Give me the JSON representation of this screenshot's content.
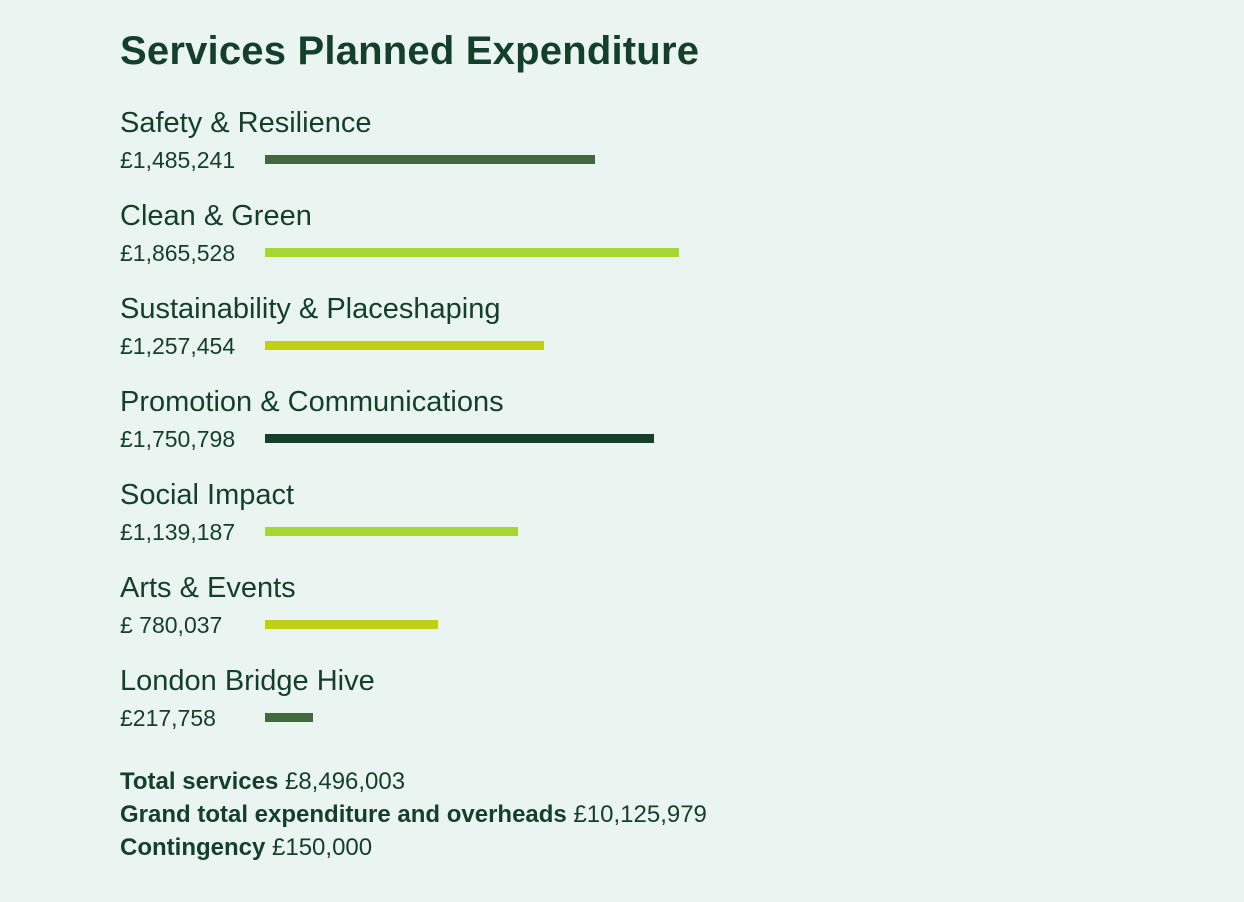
{
  "title": "Services Planned Expenditure",
  "chart_data": {
    "type": "bar",
    "orientation": "horizontal",
    "title": "Services Planned Expenditure",
    "categories": [
      "Safety & Resilience",
      "Clean & Green",
      "Sustainability & Placeshaping",
      "Promotion & Communications",
      "Social Impact",
      "Arts & Events",
      "London Bridge Hive"
    ],
    "values": [
      1485241,
      1865528,
      1257454,
      1750798,
      1139187,
      780037,
      217758
    ],
    "value_labels": [
      "£1,485,241",
      "£1,865,528",
      "£1,257,454",
      "£1,750,798",
      "£1,139,187",
      "£ 780,037",
      "£217,758"
    ],
    "bar_colors": [
      "#44683d",
      "#a6d630",
      "#c1cf12",
      "#153f2a",
      "#a6d630",
      "#c1cf12",
      "#44683d"
    ],
    "xlabel": "",
    "ylabel": "",
    "grid": false,
    "legend": "none"
  },
  "totals": [
    {
      "label": "Total services",
      "value": "£8,496,003"
    },
    {
      "label": "Grand total expenditure and overheads",
      "value": "£10,125,979"
    },
    {
      "label": "Contingency",
      "value": "£150,000"
    }
  ]
}
